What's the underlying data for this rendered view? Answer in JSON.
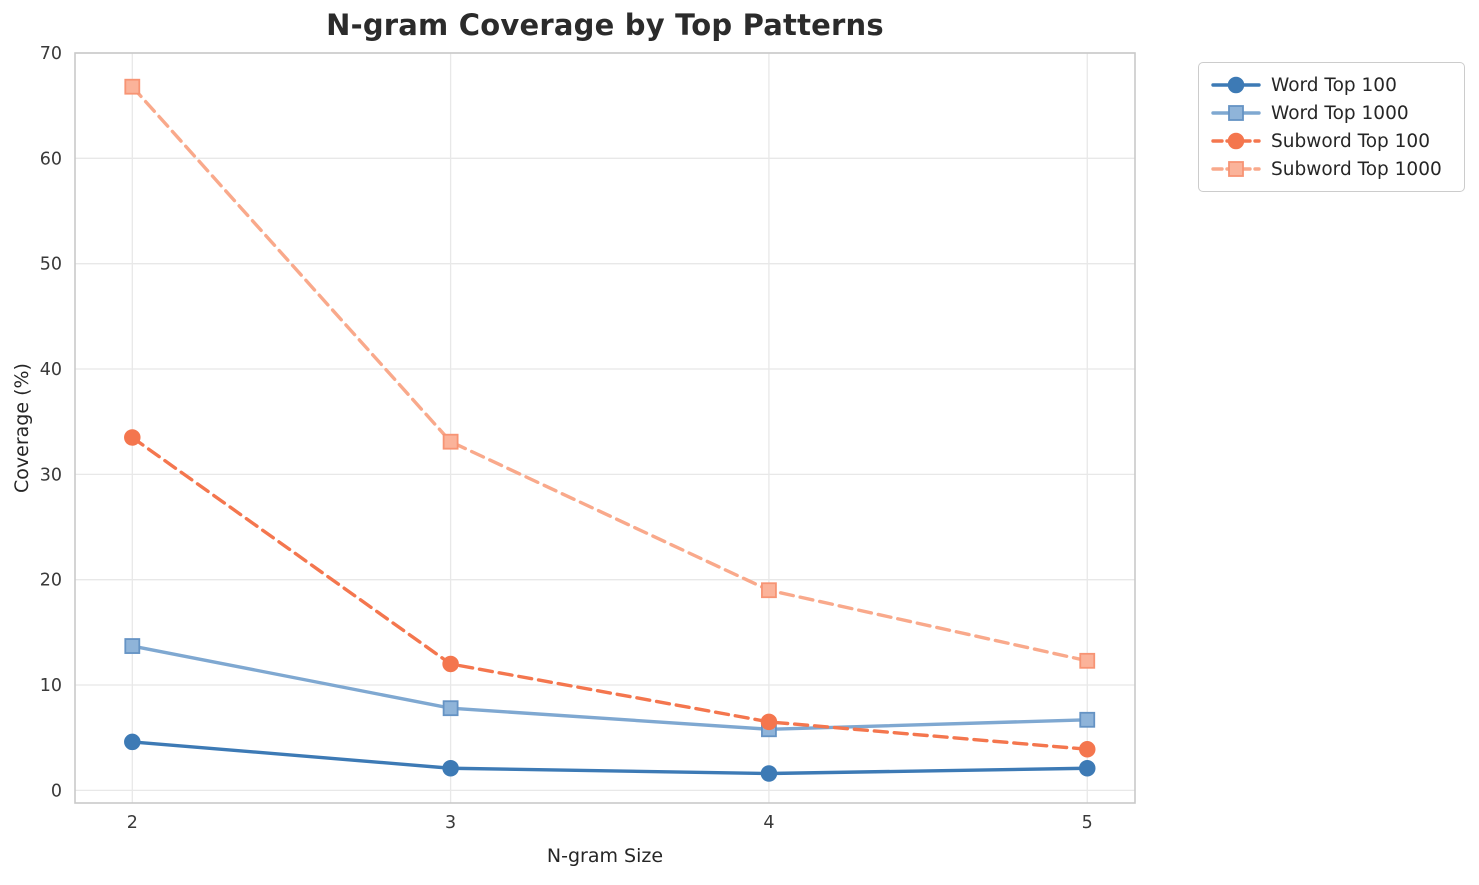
{
  "chart_data": {
    "type": "line",
    "title": "N-gram Coverage by Top Patterns",
    "xlabel": "N-gram Size",
    "ylabel": "Coverage (%)",
    "x": [
      2,
      3,
      4,
      5
    ],
    "xticks": [
      2,
      3,
      4,
      5
    ],
    "yticks": [
      0,
      10,
      20,
      30,
      40,
      50,
      60,
      70
    ],
    "xlim": [
      1.82,
      5.15
    ],
    "ylim": [
      -1.2,
      70
    ],
    "grid": true,
    "legend_position": "outside-upper-right",
    "series": [
      {
        "name": "Word Top 100",
        "values": [
          4.6,
          2.1,
          1.6,
          2.1
        ],
        "color": "#3d7ab5",
        "marker": "circle",
        "marker_fill": "#3d7ab5",
        "marker_edge": "#3d7ab5",
        "line_style": "solid"
      },
      {
        "name": "Word Top 1000",
        "values": [
          13.7,
          7.8,
          5.8,
          6.7
        ],
        "color": "#7fa8d1",
        "marker": "square",
        "marker_fill": "#8fb4d9",
        "marker_edge": "#6593c4",
        "line_style": "solid"
      },
      {
        "name": "Subword Top 100",
        "values": [
          33.5,
          12.0,
          6.5,
          3.9
        ],
        "color": "#f4764e",
        "marker": "circle",
        "marker_fill": "#f4764e",
        "marker_edge": "#f4764e",
        "line_style": "dashed"
      },
      {
        "name": "Subword Top 1000",
        "values": [
          66.8,
          33.1,
          19.0,
          12.3
        ],
        "color": "#f9a98b",
        "marker": "square",
        "marker_fill": "#fbb39a",
        "marker_edge": "#f79474",
        "line_style": "dashed"
      }
    ],
    "colors": {
      "grid": "#e8e8e8",
      "spine": "#c9c9c9",
      "text": "#3a3a3a"
    }
  }
}
